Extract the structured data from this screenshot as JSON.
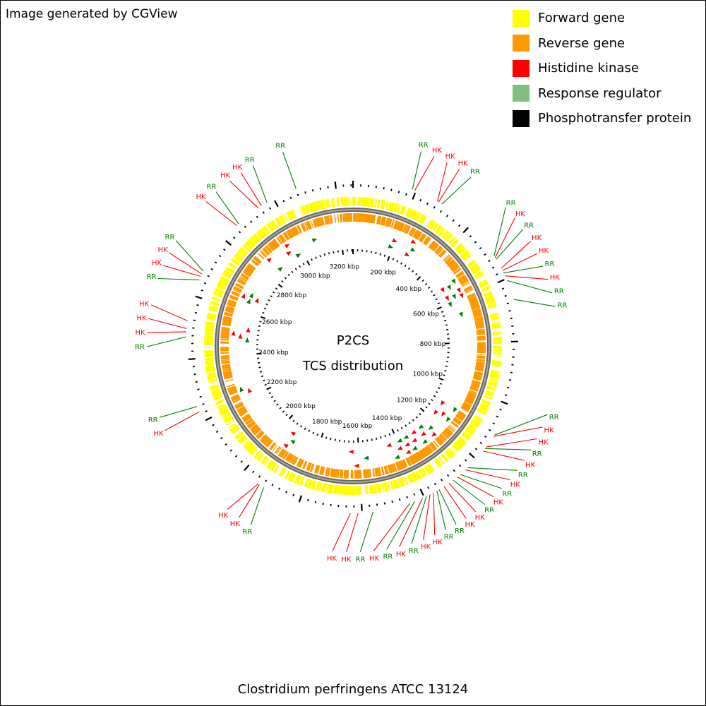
{
  "credit": "Image generated by CGView",
  "organism": "Clostridium perfringens ATCC 13124",
  "center": {
    "line1": "P2CS",
    "line2": "TCS distribution"
  },
  "legend": [
    {
      "label": "Forward gene",
      "color": "#ffff00"
    },
    {
      "label": "Reverse gene",
      "color": "#ff9900"
    },
    {
      "label": "Histidine kinase",
      "color": "#ff0000"
    },
    {
      "label": "Response regulator",
      "color": "#7fbf7f"
    },
    {
      "label": "Phosphotransfer protein",
      "color": "#000000"
    }
  ],
  "colors": {
    "hk": "#ff0000",
    "rr": "#007f00",
    "backbone": "#808080",
    "forward": "#ffff00",
    "reverse": "#ff9900"
  },
  "genome_kbp": 3256,
  "kbp_ticks": [
    "200 kbp",
    "400 kbp",
    "600 kbp",
    "800 kbp",
    "1000 kbp",
    "1200 kbp",
    "1400 kbp",
    "1600 kbp",
    "1800 kbp",
    "2000 kbp",
    "2200 kbp",
    "2400 kbp",
    "2600 kbp",
    "2800 kbp",
    "3000 kbp",
    "3200 kbp"
  ],
  "features": [
    {
      "type": "RR",
      "kbp": 188
    },
    {
      "type": "HK",
      "kbp": 196
    },
    {
      "type": "HK",
      "kbp": 274
    },
    {
      "type": "HK",
      "kbp": 278
    },
    {
      "type": "RR",
      "kbp": 290
    },
    {
      "type": "RR",
      "kbp": 520
    },
    {
      "type": "HK",
      "kbp": 526
    },
    {
      "type": "RR",
      "kbp": 532
    },
    {
      "type": "HK",
      "kbp": 564
    },
    {
      "type": "HK",
      "kbp": 572
    },
    {
      "type": "RR",
      "kbp": 580
    },
    {
      "type": "HK",
      "kbp": 590
    },
    {
      "type": "RR",
      "kbp": 606
    },
    {
      "type": "RR",
      "kbp": 668
    },
    {
      "type": "RR",
      "kbp": 1105
    },
    {
      "type": "HK",
      "kbp": 1110
    },
    {
      "type": "HK",
      "kbp": 1150
    },
    {
      "type": "RR",
      "kbp": 1156
    },
    {
      "type": "HK",
      "kbp": 1166
    },
    {
      "type": "RR",
      "kbp": 1236
    },
    {
      "type": "HK",
      "kbp": 1246
    },
    {
      "type": "RR",
      "kbp": 1268
    },
    {
      "type": "HK",
      "kbp": 1280
    },
    {
      "type": "RR",
      "kbp": 1296
    },
    {
      "type": "HK",
      "kbp": 1312
    },
    {
      "type": "HK",
      "kbp": 1330
    },
    {
      "type": "RR",
      "kbp": 1348
    },
    {
      "type": "RR",
      "kbp": 1356
    },
    {
      "type": "HK",
      "kbp": 1368
    },
    {
      "type": "HK",
      "kbp": 1380
    },
    {
      "type": "RR",
      "kbp": 1392
    },
    {
      "type": "HK",
      "kbp": 1406
    },
    {
      "type": "RR",
      "kbp": 1432
    },
    {
      "type": "HK",
      "kbp": 1448
    },
    {
      "type": "RR",
      "kbp": 1566
    },
    {
      "type": "HK",
      "kbp": 1612
    },
    {
      "type": "HK",
      "kbp": 1636
    },
    {
      "type": "RR",
      "kbp": 1920
    },
    {
      "type": "HK",
      "kbp": 1936
    },
    {
      "type": "HK",
      "kbp": 1940
    },
    {
      "type": "HK",
      "kbp": 2232
    },
    {
      "type": "RR",
      "kbp": 2250
    },
    {
      "type": "RR",
      "kbp": 2470
    },
    {
      "type": "HK",
      "kbp": 2486
    },
    {
      "type": "HK",
      "kbp": 2496
    },
    {
      "type": "HK",
      "kbp": 2520
    },
    {
      "type": "RR",
      "kbp": 2652
    },
    {
      "type": "HK",
      "kbp": 2664
    },
    {
      "type": "HK",
      "kbp": 2672
    },
    {
      "type": "RR",
      "kbp": 2682
    },
    {
      "type": "HK",
      "kbp": 2858
    },
    {
      "type": "RR",
      "kbp": 2866
    },
    {
      "type": "HK",
      "kbp": 2944
    },
    {
      "type": "HK",
      "kbp": 2956
    },
    {
      "type": "RR",
      "kbp": 2976
    },
    {
      "type": "RR",
      "kbp": 3076
    }
  ]
}
